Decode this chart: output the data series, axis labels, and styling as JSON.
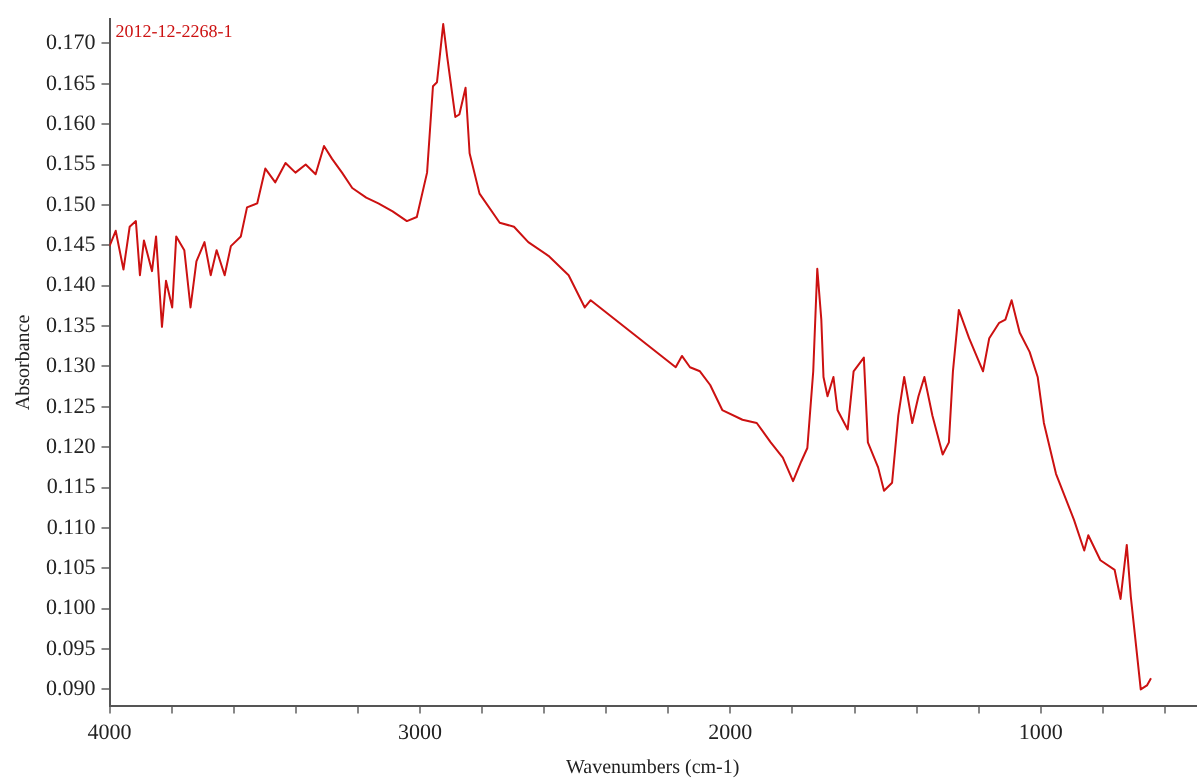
{
  "chart_data": {
    "type": "line",
    "xlabel": "Wavenumbers (cm-1)",
    "ylabel": "Absorbance",
    "annotations": [
      "2012-12-2268-1"
    ],
    "xlim": [
      4000,
      500
    ],
    "xticks": [
      4000,
      {
        "value": 3800,
        "label": null
      },
      {
        "value": 3600,
        "label": null
      },
      {
        "value": 3400,
        "label": null
      },
      {
        "value": 3200,
        "label": null
      },
      3000,
      {
        "value": 2800,
        "label": null
      },
      {
        "value": 2600,
        "label": null
      },
      {
        "value": 2400,
        "label": null
      },
      {
        "value": 2200,
        "label": null
      },
      2000,
      {
        "value": 1800,
        "label": null
      },
      {
        "value": 1600,
        "label": null
      },
      {
        "value": 1400,
        "label": null
      },
      {
        "value": 1200,
        "label": null
      },
      1000,
      {
        "value": 800,
        "label": null
      },
      {
        "value": 600,
        "label": null
      }
    ],
    "ylim": [
      0.088,
      0.173
    ],
    "yticks": [
      {
        "value": 0.09,
        "label": "0.090"
      },
      0.095,
      {
        "value": 0.1,
        "label": "0.100"
      },
      0.105,
      {
        "value": 0.11,
        "label": "0.110"
      },
      0.115,
      {
        "value": 0.12,
        "label": "0.120"
      },
      0.125,
      {
        "value": 0.13,
        "label": "0.130"
      },
      0.135,
      {
        "value": 0.14,
        "label": "0.140"
      },
      0.145,
      {
        "value": 0.15,
        "label": "0.150"
      },
      0.155,
      {
        "value": 0.16,
        "label": "0.160"
      },
      0.165,
      {
        "value": 0.17,
        "label": "0.170"
      }
    ],
    "grid": false,
    "legend": false,
    "marker": "none",
    "line_style": "solid",
    "series": [
      {
        "color": "#cc1111",
        "x": [
          4000,
          3980,
          3955,
          3935,
          3915,
          3902,
          3889,
          3863,
          3850,
          3831,
          3818,
          3798,
          3785,
          3759,
          3739,
          3720,
          3694,
          3674,
          3655,
          3629,
          3609,
          3577,
          3557,
          3524,
          3498,
          3466,
          3433,
          3401,
          3368,
          3336,
          3309,
          3283,
          3251,
          3218,
          3173,
          3134,
          3088,
          3042,
          3010,
          2977,
          2958,
          2945,
          2925,
          2912,
          2886,
          2873,
          2853,
          2840,
          2808,
          2743,
          2697,
          2651,
          2586,
          2521,
          2469,
          2450,
          2176,
          2156,
          2130,
          2098,
          2065,
          2026,
          1961,
          1915,
          1870,
          1831,
          1798,
          1772,
          1752,
          1733,
          1720,
          1707,
          1700,
          1687,
          1668,
          1655,
          1622,
          1603,
          1570,
          1557,
          1524,
          1505,
          1479,
          1459,
          1440,
          1414,
          1394,
          1375,
          1349,
          1316,
          1296,
          1283,
          1264,
          1231,
          1186,
          1166,
          1134,
          1114,
          1094,
          1068,
          1036,
          1010,
          990,
          951,
          893,
          860,
          847,
          808,
          762,
          743,
          723,
          710,
          678,
          658,
          645
        ],
        "values": [
          0.1449,
          0.1468,
          0.142,
          0.1473,
          0.148,
          0.1413,
          0.1456,
          0.1418,
          0.1461,
          0.1349,
          0.1406,
          0.1373,
          0.1461,
          0.1444,
          0.1373,
          0.143,
          0.1454,
          0.1413,
          0.1444,
          0.1413,
          0.1449,
          0.1461,
          0.1497,
          0.1502,
          0.1545,
          0.1528,
          0.1552,
          0.154,
          0.155,
          0.1538,
          0.1573,
          0.1557,
          0.154,
          0.1521,
          0.1509,
          0.1502,
          0.1492,
          0.148,
          0.1485,
          0.154,
          0.1647,
          0.1652,
          0.1724,
          0.1683,
          0.1609,
          0.1612,
          0.1645,
          0.1564,
          0.1514,
          0.1478,
          0.1473,
          0.1454,
          0.1437,
          0.1413,
          0.1373,
          0.1382,
          0.1299,
          0.1313,
          0.1299,
          0.1294,
          0.1277,
          0.1246,
          0.1234,
          0.123,
          0.1206,
          0.1187,
          0.1158,
          0.1182,
          0.1199,
          0.1294,
          0.1421,
          0.1358,
          0.1287,
          0.1263,
          0.1287,
          0.1246,
          0.1222,
          0.1294,
          0.1311,
          0.1206,
          0.1175,
          0.1146,
          0.1156,
          0.1239,
          0.1287,
          0.123,
          0.1263,
          0.1287,
          0.1239,
          0.1191,
          0.1206,
          0.1294,
          0.137,
          0.1335,
          0.1294,
          0.1335,
          0.1354,
          0.1358,
          0.1382,
          0.1342,
          0.1318,
          0.1287,
          0.123,
          0.1167,
          0.111,
          0.1072,
          0.1091,
          0.106,
          0.1048,
          0.1012,
          0.1079,
          0.1015,
          0.09,
          0.0905,
          0.0914
        ]
      }
    ]
  }
}
